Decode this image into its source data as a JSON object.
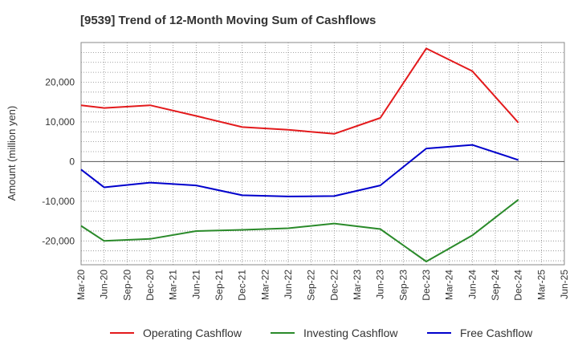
{
  "chart_data": {
    "type": "line",
    "title": "[9539]  Trend of 12-Month Moving Sum of Cashflows",
    "ylabel": "Amount (million yen)",
    "xlabel": "",
    "ylim": [
      -26000,
      30000
    ],
    "yticks": [
      20000,
      10000,
      0,
      -10000,
      -20000
    ],
    "ytick_labels": [
      "20,000",
      "10,000",
      "0",
      "-10,000",
      "-20,000"
    ],
    "x_categories": [
      "Mar-20",
      "Jun-20",
      "Sep-20",
      "Dec-20",
      "Mar-21",
      "Jun-21",
      "Sep-21",
      "Dec-21",
      "Mar-22",
      "Jun-22",
      "Sep-22",
      "Dec-22",
      "Mar-23",
      "Jun-23",
      "Sep-23",
      "Dec-23",
      "Mar-24",
      "Jun-24",
      "Sep-24",
      "Dec-24",
      "Mar-25",
      "Jun-25"
    ],
    "grid": true,
    "legend_position": "bottom",
    "series": [
      {
        "name": "Operating Cashflow",
        "color": "#e31a1c",
        "points": [
          [
            "Mar-20",
            14200
          ],
          [
            "Jun-20",
            13500
          ],
          [
            "Dec-20",
            14200
          ],
          [
            "Jun-21",
            11500
          ],
          [
            "Dec-21",
            8700
          ],
          [
            "Jun-22",
            8000
          ],
          [
            "Dec-22",
            7000
          ],
          [
            "Jun-23",
            11000
          ],
          [
            "Dec-23",
            28500
          ],
          [
            "Jun-24",
            22800
          ],
          [
            "Dec-24",
            9800
          ]
        ]
      },
      {
        "name": "Investing Cashflow",
        "color": "#2a8a2a",
        "points": [
          [
            "Mar-20",
            -16200
          ],
          [
            "Jun-20",
            -20000
          ],
          [
            "Dec-20",
            -19500
          ],
          [
            "Jun-21",
            -17500
          ],
          [
            "Dec-21",
            -17200
          ],
          [
            "Jun-22",
            -16800
          ],
          [
            "Dec-22",
            -15600
          ],
          [
            "Jun-23",
            -17000
          ],
          [
            "Dec-23",
            -25200
          ],
          [
            "Jun-24",
            -18600
          ],
          [
            "Dec-24",
            -9600
          ]
        ]
      },
      {
        "name": "Free Cashflow",
        "color": "#0000cc",
        "points": [
          [
            "Mar-20",
            -2000
          ],
          [
            "Jun-20",
            -6500
          ],
          [
            "Dec-20",
            -5300
          ],
          [
            "Jun-21",
            -6000
          ],
          [
            "Dec-21",
            -8500
          ],
          [
            "Jun-22",
            -8800
          ],
          [
            "Dec-22",
            -8700
          ],
          [
            "Jun-23",
            -6000
          ],
          [
            "Dec-23",
            3300
          ],
          [
            "Jun-24",
            4200
          ],
          [
            "Dec-24",
            400
          ]
        ]
      }
    ]
  }
}
